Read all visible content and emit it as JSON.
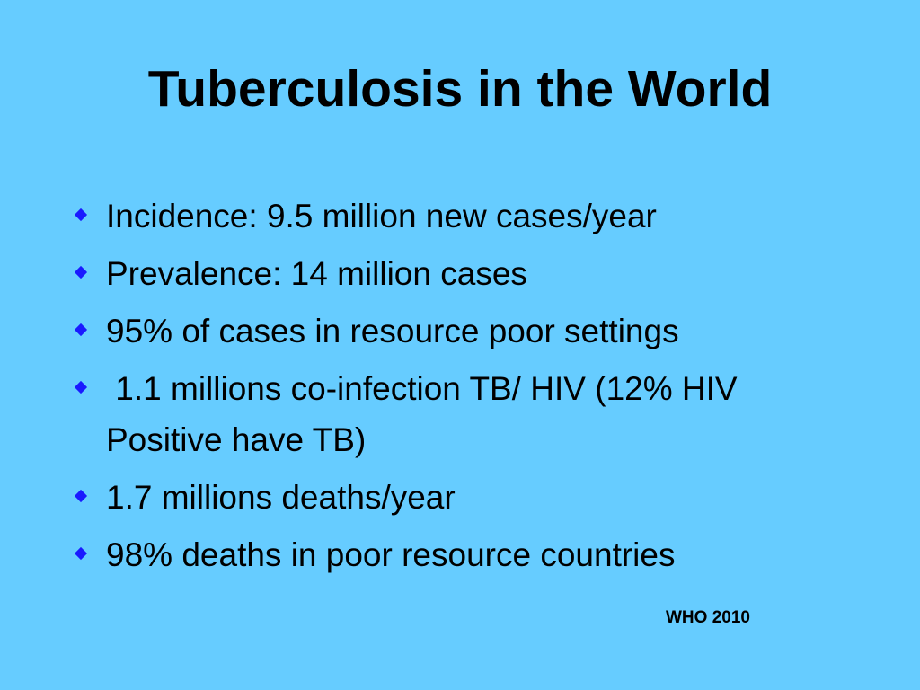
{
  "slide": {
    "title": "Tuberculosis in the World",
    "background_color": "#66ccff",
    "bullet_color": "#1a1aff",
    "bullet_icon": "diamond-bullet-icon",
    "bullets": [
      "Incidence: 9.5 million new cases/year",
      "Prevalence: 14 million cases",
      "95% of cases in resource poor settings",
      " 1.1 millions co-infection TB/ HIV (12% HIV Positive have TB)",
      "1.7 millions deaths/year",
      "98% deaths in poor resource countries"
    ],
    "source": "WHO 2010"
  }
}
